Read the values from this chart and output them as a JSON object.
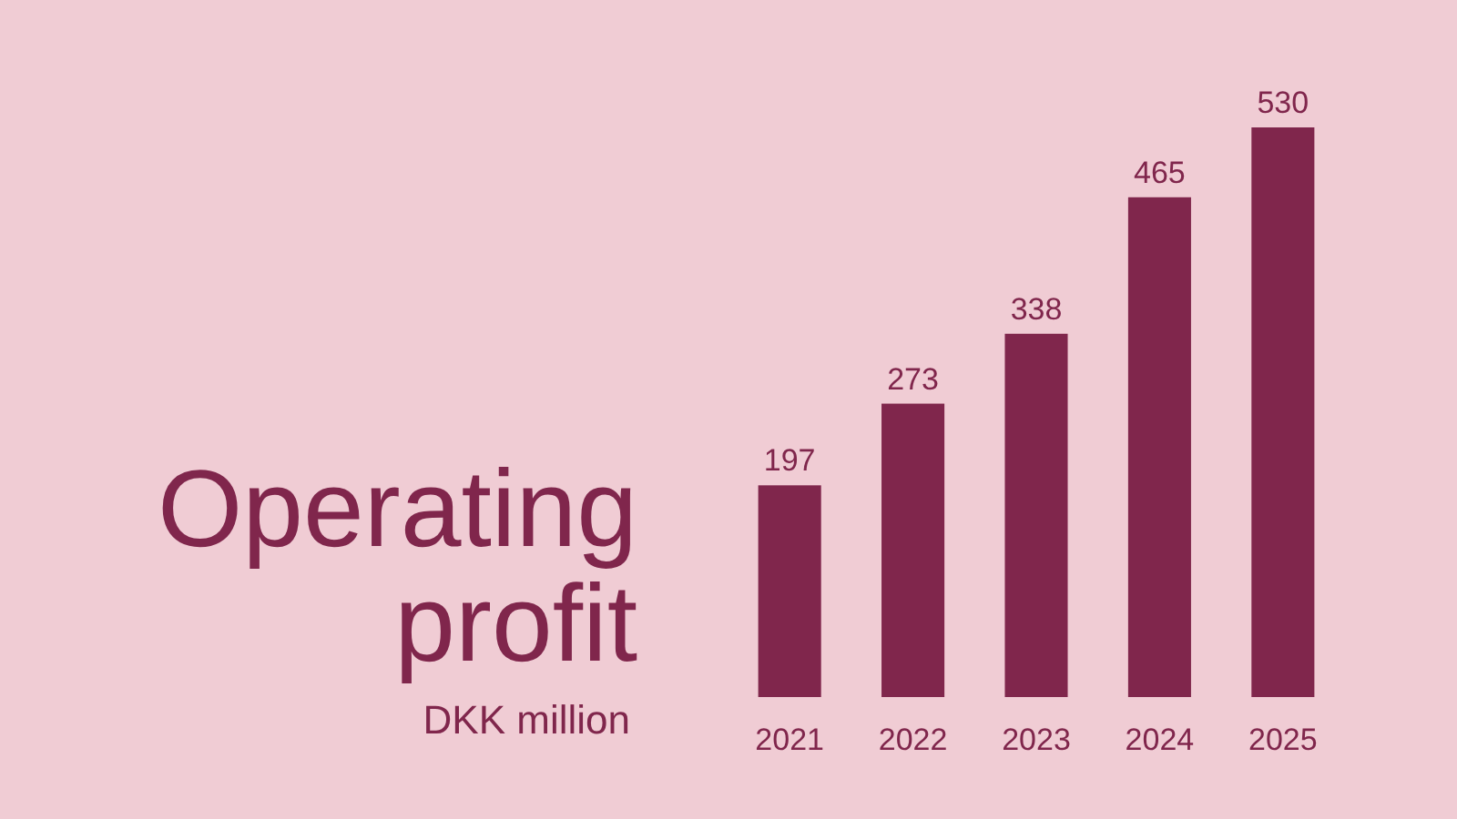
{
  "chart_data": {
    "type": "bar",
    "title": "Operating profit",
    "subtitle": "DKK million",
    "categories": [
      "2021",
      "2022",
      "2023",
      "2024",
      "2025"
    ],
    "values": [
      197,
      273,
      338,
      465,
      530
    ],
    "color": "#80264c",
    "data_labels": true
  }
}
